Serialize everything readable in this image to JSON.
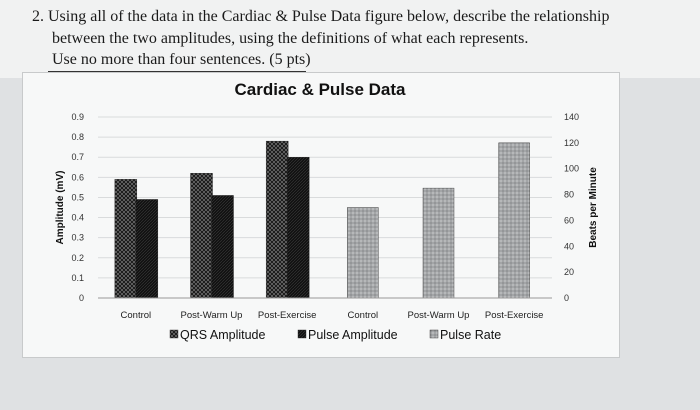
{
  "question": {
    "line1": "2. Using all of the data in the Cardiac & Pulse Data figure below, describe the relationship",
    "line2": "between the two amplitudes, using the definitions of what each represents.",
    "line3": "Use no more than four sentences. (5 pts)"
  },
  "colors": {
    "bar_dark": "#111111",
    "bar_gray": "#9a9c9e",
    "grid": "#d9dbdc"
  },
  "chart_data": {
    "type": "bar",
    "title": "Cardiac & Pulse Data",
    "ylabel": "Amplitude (mV)",
    "y2label": "Beats per Minute",
    "ylim": [
      0,
      0.9
    ],
    "y2lim": [
      0,
      140
    ],
    "yticks": [
      "0",
      "0.1",
      "0.2",
      "0.3",
      "0.4",
      "0.5",
      "0.6",
      "0.7",
      "0.8",
      "0.9"
    ],
    "y2ticks": [
      "0",
      "20",
      "40",
      "60",
      "80",
      "100",
      "120",
      "140"
    ],
    "categories": [
      "Control",
      "Post-Warm Up",
      "Post-Exercise",
      "Control",
      "Post-Warm Up",
      "Post-Exercise"
    ],
    "grid": true,
    "legend_position": "bottom",
    "series": [
      {
        "name": "QRS Amplitude",
        "axis": "left",
        "values": [
          0.59,
          0.62,
          0.78,
          null,
          null,
          null
        ]
      },
      {
        "name": "Pulse Amplitude",
        "axis": "left",
        "values": [
          0.49,
          0.51,
          0.7,
          null,
          null,
          null
        ]
      },
      {
        "name": "Pulse Rate",
        "axis": "right",
        "values": [
          null,
          null,
          null,
          70,
          85,
          120
        ]
      }
    ]
  }
}
